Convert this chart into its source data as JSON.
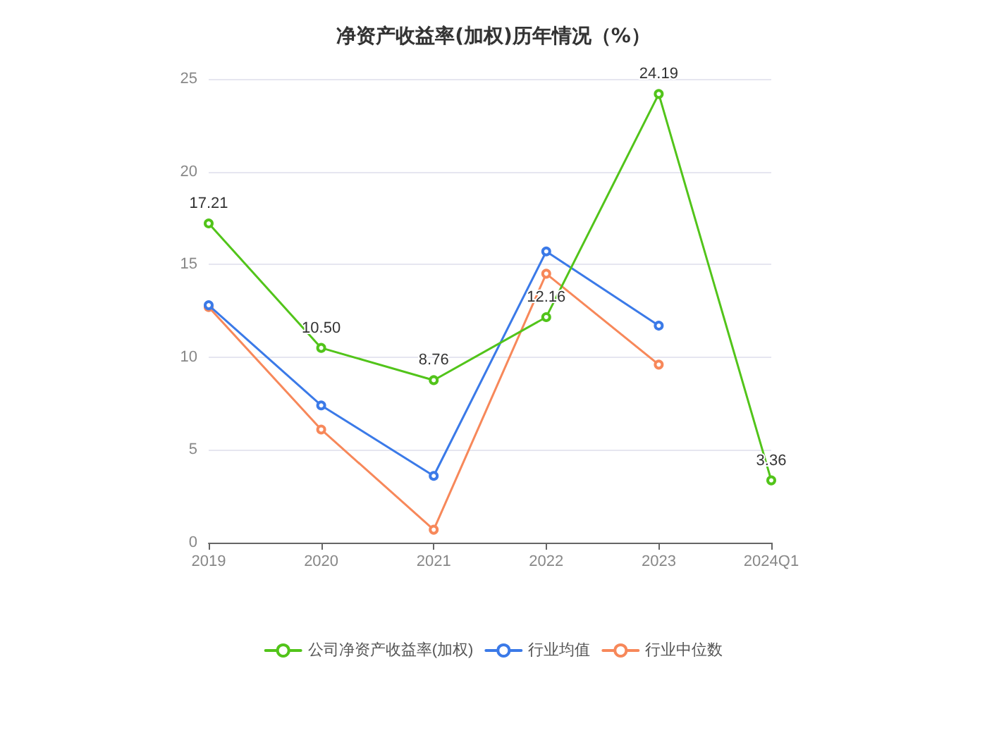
{
  "chart_data": {
    "type": "line",
    "title": "净资产收益率(加权)历年情况（%）",
    "categories": [
      "2019",
      "2020",
      "2021",
      "2022",
      "2023",
      "2024Q1"
    ],
    "series": [
      {
        "name": "公司净资产收益率(加权)",
        "color": "#52c41a",
        "values": [
          17.21,
          10.5,
          8.76,
          12.16,
          24.19,
          3.36
        ],
        "value_labels": [
          "17.21",
          "10.50",
          "8.76",
          "12.16",
          "24.19",
          "3.36"
        ]
      },
      {
        "name": "行业均值",
        "color": "#3b7ae8",
        "values": [
          12.8,
          7.4,
          3.6,
          15.7,
          11.7,
          null
        ]
      },
      {
        "name": "行业中位数",
        "color": "#f7885a",
        "values": [
          12.7,
          6.1,
          0.7,
          14.5,
          9.6,
          null
        ]
      }
    ],
    "ylim": [
      0,
      25
    ],
    "yticks": [
      0,
      5,
      10,
      15,
      20,
      25
    ],
    "grid": "y",
    "legend": "bottom",
    "marker": "circle",
    "line_style": "solid"
  }
}
